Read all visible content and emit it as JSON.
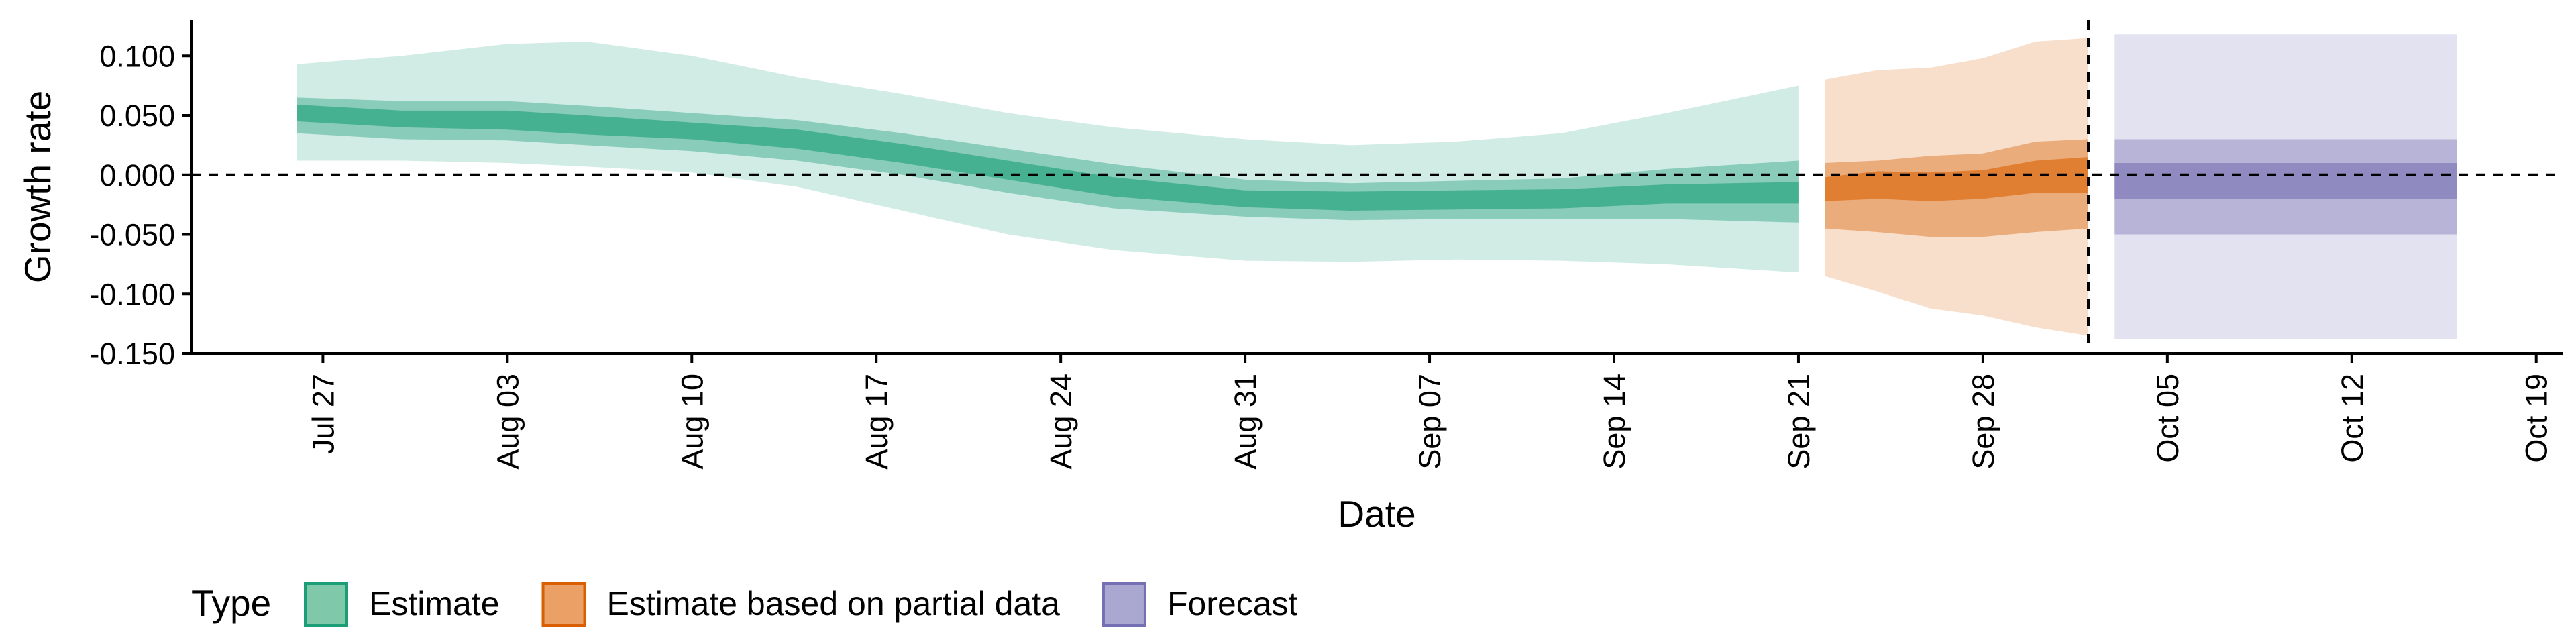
{
  "chart_data": {
    "type": "area",
    "xlabel": "Date",
    "ylabel": "Growth rate",
    "xlim": [
      "2020-07-22",
      "2020-10-20"
    ],
    "ylim": [
      -0.15,
      0.13
    ],
    "y_ticks": [
      -0.15,
      -0.1,
      -0.05,
      0.0,
      0.05,
      0.1
    ],
    "y_tick_labels": [
      "-0.150",
      "-0.100",
      "-0.050",
      "0.000",
      "0.050",
      "0.100"
    ],
    "x_ticks": [
      "2020-07-27",
      "2020-08-03",
      "2020-08-10",
      "2020-08-17",
      "2020-08-24",
      "2020-08-31",
      "2020-09-07",
      "2020-09-14",
      "2020-09-21",
      "2020-09-28",
      "2020-10-05",
      "2020-10-12",
      "2020-10-19"
    ],
    "x_tick_labels": [
      "Jul 27",
      "Aug 03",
      "Aug 10",
      "Aug 17",
      "Aug 24",
      "Aug 31",
      "Sep 07",
      "Sep 14",
      "Sep 21",
      "Sep 28",
      "Oct 05",
      "Oct 12",
      "Oct 19"
    ],
    "reference_lines": {
      "horizontal_y": 0.0,
      "vertical_x": "2020-10-02"
    },
    "legend": {
      "title": "Type",
      "placement": "bottom-left",
      "items": [
        {
          "label": "Estimate",
          "fill": "#7fc8a9",
          "stroke": "#1b9e77"
        },
        {
          "label": "Estimate based on partial data",
          "fill": "#eba066",
          "stroke": "#d95f02"
        },
        {
          "label": "Forecast",
          "fill": "#aaa7d1",
          "stroke": "#7570b3"
        }
      ]
    },
    "series": [
      {
        "name": "Estimate",
        "color": "#1b9e77",
        "x": [
          "2020-07-26",
          "2020-07-30",
          "2020-08-03",
          "2020-08-06",
          "2020-08-10",
          "2020-08-14",
          "2020-08-18",
          "2020-08-22",
          "2020-08-26",
          "2020-08-31",
          "2020-09-04",
          "2020-09-08",
          "2020-09-12",
          "2020-09-16",
          "2020-09-21"
        ],
        "median": [
          0.052,
          0.047,
          0.046,
          0.042,
          0.037,
          0.03,
          0.018,
          0.004,
          -0.01,
          -0.02,
          -0.022,
          -0.021,
          -0.02,
          -0.016,
          -0.015
        ],
        "lower_20": [
          0.045,
          0.04,
          0.038,
          0.034,
          0.03,
          0.022,
          0.01,
          -0.004,
          -0.018,
          -0.027,
          -0.03,
          -0.029,
          -0.028,
          -0.024,
          -0.024
        ],
        "upper_20": [
          0.059,
          0.054,
          0.054,
          0.05,
          0.044,
          0.038,
          0.026,
          0.012,
          -0.002,
          -0.013,
          -0.014,
          -0.013,
          -0.012,
          -0.008,
          -0.006
        ],
        "lower_50": [
          0.035,
          0.03,
          0.029,
          0.025,
          0.02,
          0.012,
          0.0,
          -0.015,
          -0.028,
          -0.035,
          -0.038,
          -0.037,
          -0.037,
          -0.037,
          -0.04
        ],
        "upper_50": [
          0.065,
          0.062,
          0.062,
          0.058,
          0.052,
          0.046,
          0.035,
          0.022,
          0.009,
          -0.004,
          -0.007,
          -0.005,
          -0.003,
          0.005,
          0.012
        ],
        "lower_90": [
          0.012,
          0.012,
          0.01,
          0.007,
          0.002,
          -0.01,
          -0.03,
          -0.05,
          -0.063,
          -0.072,
          -0.073,
          -0.071,
          -0.072,
          -0.075,
          -0.082
        ],
        "upper_90": [
          0.093,
          0.1,
          0.11,
          0.112,
          0.1,
          0.082,
          0.068,
          0.052,
          0.04,
          0.03,
          0.025,
          0.028,
          0.035,
          0.052,
          0.075
        ]
      },
      {
        "name": "Estimate based on partial data",
        "color": "#d95f02",
        "x": [
          "2020-09-22",
          "2020-09-24",
          "2020-09-26",
          "2020-09-28",
          "2020-09-30",
          "2020-10-02"
        ],
        "median": [
          -0.012,
          -0.008,
          -0.01,
          -0.008,
          -0.002,
          0.0
        ],
        "lower_20": [
          -0.022,
          -0.02,
          -0.022,
          -0.02,
          -0.015,
          -0.015
        ],
        "upper_20": [
          -0.002,
          0.003,
          0.002,
          0.004,
          0.012,
          0.015
        ],
        "lower_50": [
          -0.045,
          -0.048,
          -0.052,
          -0.052,
          -0.048,
          -0.045
        ],
        "upper_50": [
          0.01,
          0.012,
          0.016,
          0.018,
          0.028,
          0.03
        ],
        "lower_90": [
          -0.085,
          -0.098,
          -0.112,
          -0.118,
          -0.128,
          -0.135
        ],
        "upper_90": [
          0.08,
          0.088,
          0.09,
          0.098,
          0.112,
          0.115
        ]
      },
      {
        "name": "Forecast",
        "color": "#7570b3",
        "x": [
          "2020-10-03",
          "2020-10-16"
        ],
        "median": [
          0.0,
          0.0
        ],
        "lower_20": [
          -0.02,
          -0.02
        ],
        "upper_20": [
          0.01,
          0.01
        ],
        "lower_50": [
          -0.05,
          -0.05
        ],
        "upper_50": [
          0.03,
          0.03
        ],
        "lower_90": [
          -0.138,
          -0.138
        ],
        "upper_90": [
          0.118,
          0.118
        ]
      }
    ]
  }
}
